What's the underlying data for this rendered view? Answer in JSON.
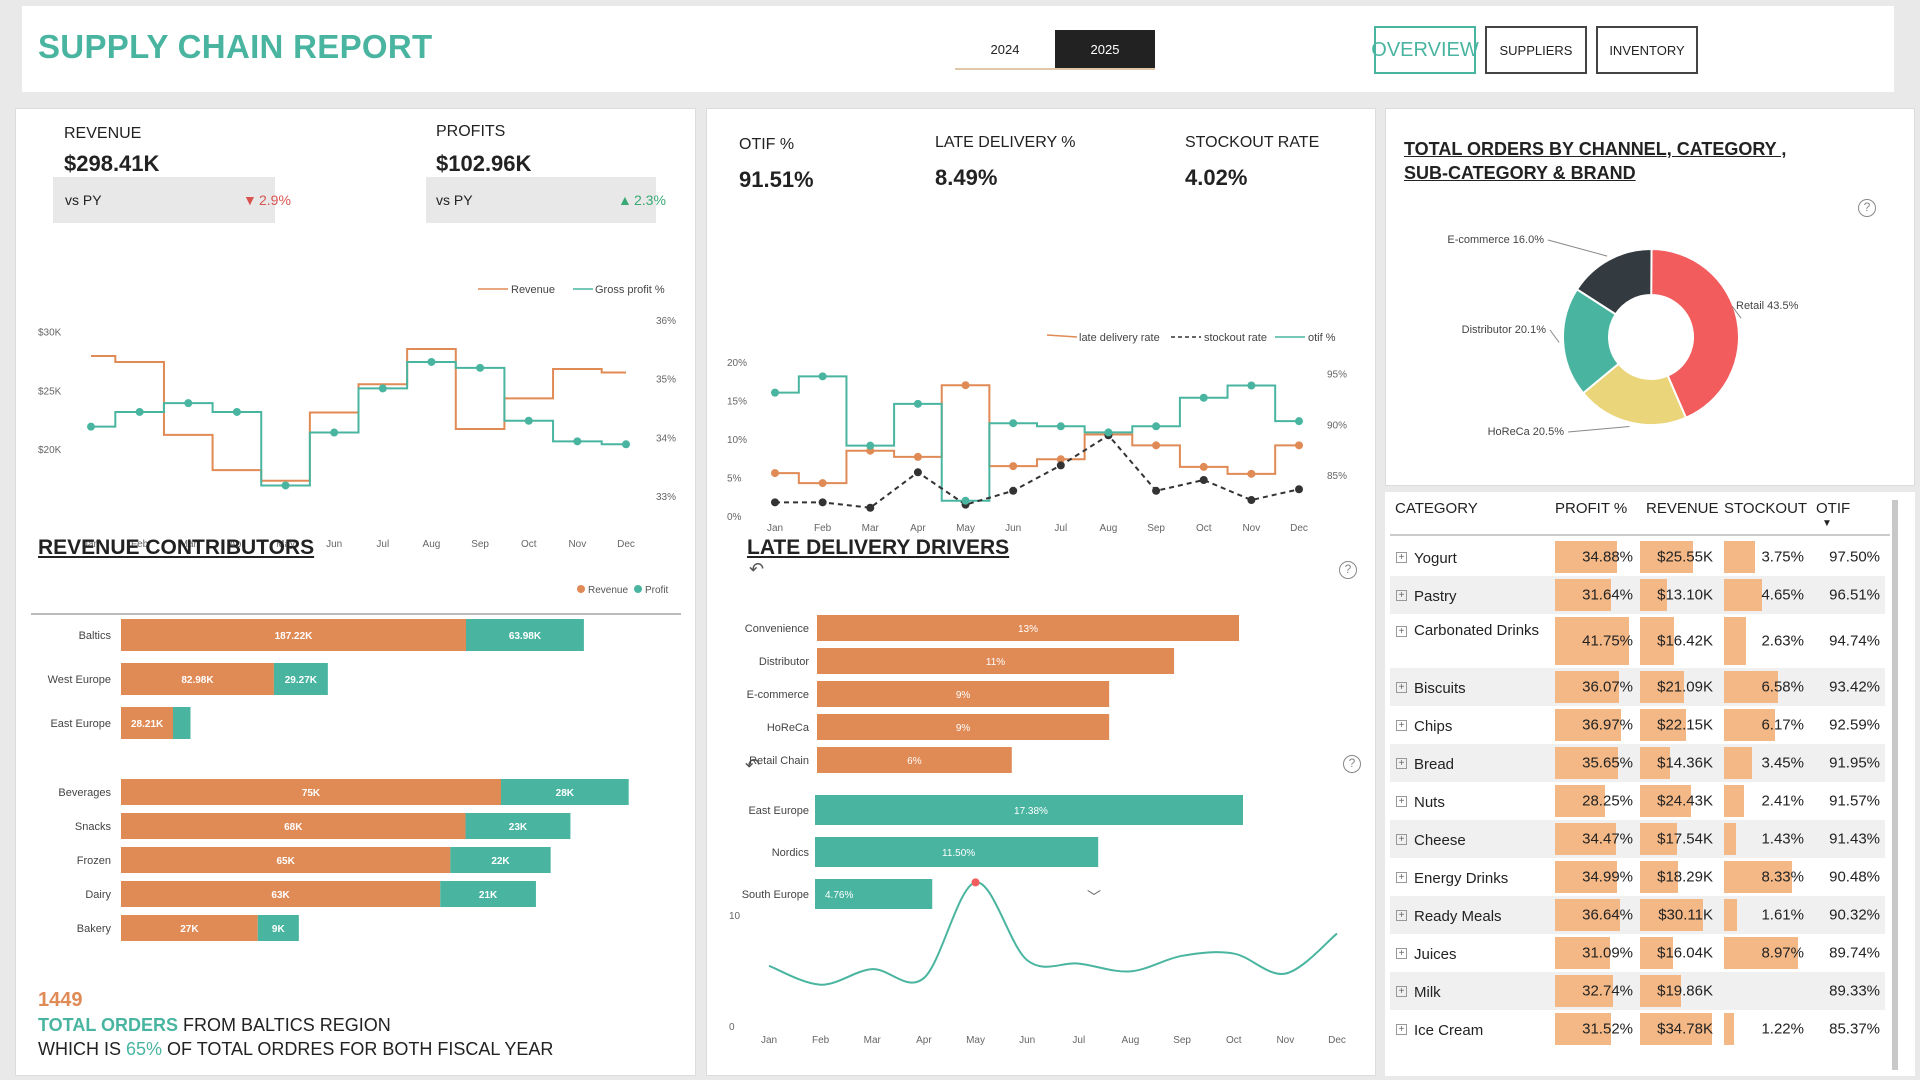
{
  "header": {
    "title": "SUPPLY CHAIN REPORT",
    "years": [
      "2024",
      "2025"
    ],
    "nav": [
      "OVERVIEW",
      "SUPPLIERS",
      "INVENTORY"
    ]
  },
  "kpis_left": {
    "revenue_label": "REVENUE",
    "revenue_value": "$298.41K",
    "revenue_vs": "vs PY",
    "revenue_change": "2.9%",
    "profits_label": "PROFITS",
    "profits_value": "$102.96K",
    "profits_vs": "vs PY",
    "profits_change": "2.3%"
  },
  "kpis_mid": {
    "otif_label": "OTIF %",
    "otif_value": "91.51%",
    "late_label": "LATE DELIVERY %",
    "late_value": "8.49%",
    "stockout_label": "STOCKOUT RATE",
    "stockout_value": "4.02%"
  },
  "colors": {
    "orange": "#e08a55",
    "teal": "#49b5a0",
    "dark": "#333a40",
    "red": "#f25c5c",
    "yellow": "#ebd57a"
  },
  "chart_data": [
    {
      "type": "line",
      "x": [
        "Jan",
        "Feb",
        "Mar",
        "Apr",
        "May",
        "Jun",
        "Jul",
        "Aug",
        "Sep",
        "Oct",
        "Nov",
        "Dec"
      ],
      "legend": [
        "Revenue",
        "Gross profit %"
      ],
      "y_ticks": [
        "$30K",
        "$25K",
        "$20K"
      ],
      "y2_ticks": [
        "36%",
        "35%",
        "34%",
        "33%"
      ],
      "series": [
        {
          "name": "Revenue",
          "values": [
            28,
            27.5,
            21.3,
            18.3,
            17.4,
            23.2,
            25.6,
            28.6,
            21.8,
            24.4,
            26.9,
            26.6
          ]
        },
        {
          "name": "Gross profit %",
          "values": [
            34.2,
            34.45,
            34.6,
            34.45,
            33.2,
            34.1,
            34.85,
            35.3,
            35.2,
            34.3,
            33.95,
            33.9
          ]
        }
      ],
      "ylim": [
        15,
        32
      ],
      "y2lim": [
        32.8,
        36.2
      ]
    },
    {
      "type": "line",
      "x": [
        "Jan",
        "Feb",
        "Mar",
        "Apr",
        "May",
        "Jun",
        "Jul",
        "Aug",
        "Sep",
        "Oct",
        "Nov",
        "Dec"
      ],
      "legend": [
        "late delivery rate",
        "stockout rate",
        "otif %"
      ],
      "y_ticks": [
        "20%",
        "15%",
        "10%",
        "5%",
        "0%"
      ],
      "y2_ticks": [
        "95%",
        "90%",
        "85%"
      ],
      "series": [
        {
          "name": "late delivery rate",
          "values": [
            5.7,
            4.4,
            8.6,
            7.8,
            17.1,
            6.6,
            7.5,
            10.7,
            9.3,
            6.5,
            5.6,
            9.3
          ]
        },
        {
          "name": "stockout rate",
          "values": [
            1.9,
            1.9,
            1.2,
            5.8,
            1.6,
            3.4,
            6.7,
            10.6,
            3.4,
            4.8,
            2.2,
            3.6
          ]
        },
        {
          "name": "otif %",
          "values": [
            93.2,
            94.8,
            88.0,
            92.1,
            82.6,
            90.2,
            89.9,
            89.3,
            89.9,
            92.7,
            93.9,
            90.4
          ]
        }
      ],
      "ylim": [
        0,
        20.5
      ],
      "y2lim": [
        81,
        96.5
      ]
    },
    {
      "type": "pie",
      "title": "TOTAL ORDERS BY CHANNEL, CATEGORY , SUB-CATEGORY & BRAND",
      "slices": [
        {
          "label": "Retail",
          "pct": 43.5,
          "text": "Retail 43.5%"
        },
        {
          "label": "HoReCa",
          "pct": 20.5,
          "text": "HoReCa 20.5%"
        },
        {
          "label": "Distributor",
          "pct": 20.1,
          "text": "Distributor 20.1%"
        },
        {
          "label": "E-commerce",
          "pct": 16.0,
          "text": "E-commerce 16.0%"
        }
      ]
    },
    {
      "type": "bar",
      "title": "REVENUE CONTRIBUTORS",
      "legend": [
        "Revenue",
        "Profit"
      ],
      "groups": [
        {
          "categories": [
            "Baltics",
            "West Europe",
            "East Europe"
          ],
          "revenue": [
            187.22,
            82.98,
            28.21
          ],
          "profit": [
            63.98,
            29.27,
            9.5
          ],
          "rev_labels": [
            "187.22K",
            "82.98K",
            "28.21K"
          ],
          "prof_labels": [
            "63.98K",
            "29.27K",
            ""
          ]
        },
        {
          "categories": [
            "Beverages",
            "Snacks",
            "Frozen",
            "Dairy",
            "Bakery"
          ],
          "revenue": [
            75,
            68,
            65,
            63,
            27
          ],
          "profit": [
            28,
            23,
            22,
            21,
            9
          ],
          "rev_labels": [
            "75K",
            "68K",
            "65K",
            "63K",
            "27K"
          ],
          "prof_labels": [
            "28K",
            "23K",
            "22K",
            "21K",
            "9K"
          ]
        }
      ]
    },
    {
      "type": "bar",
      "title": "LATE DELIVERY DRIVERS",
      "groups": [
        {
          "categories": [
            "Convenience",
            "Distributor",
            "E-commerce",
            "HoReCa",
            "Retail Chain"
          ],
          "values": [
            13,
            11,
            9,
            9,
            6
          ],
          "labels": [
            "13%",
            "11%",
            "9%",
            "9%",
            "6%"
          ]
        },
        {
          "categories": [
            "East Europe",
            "Nordics",
            "South Europe"
          ],
          "values": [
            17.38,
            11.5,
            4.76
          ],
          "labels": [
            "17.38%",
            "11.50%",
            "4.76%"
          ]
        }
      ]
    },
    {
      "type": "line",
      "x": [
        "Jan",
        "Feb",
        "Mar",
        "Apr",
        "May",
        "Jun",
        "Jul",
        "Aug",
        "Sep",
        "Oct",
        "Nov",
        "Dec"
      ],
      "y_ticks": [
        "10",
        "0"
      ],
      "values": [
        5.5,
        3.8,
        5.2,
        4.4,
        13.0,
        6.0,
        5.7,
        5.0,
        6.4,
        6.6,
        4.8,
        8.4
      ],
      "ylim": [
        0,
        16
      ]
    }
  ],
  "table": {
    "headers": [
      "CATEGORY",
      "PROFIT %",
      "REVENUE",
      "STOCKOUT",
      "OTIF"
    ],
    "rows": [
      {
        "cat": "Yogurt",
        "profit": "34.88%",
        "p": 34.88,
        "revenue": "$25.55K",
        "r": 25.55,
        "stockout": "3.75%",
        "s": 3.75,
        "otif": "97.50%"
      },
      {
        "cat": "Pastry",
        "profit": "31.64%",
        "p": 31.64,
        "revenue": "$13.10K",
        "r": 13.1,
        "stockout": "4.65%",
        "s": 4.65,
        "otif": "96.51%"
      },
      {
        "cat": "Carbonated Drinks",
        "profit": "41.75%",
        "p": 41.75,
        "revenue": "$16.42K",
        "r": 16.42,
        "stockout": "2.63%",
        "s": 2.63,
        "otif": "94.74%"
      },
      {
        "cat": "Biscuits",
        "profit": "36.07%",
        "p": 36.07,
        "revenue": "$21.09K",
        "r": 21.09,
        "stockout": "6.58%",
        "s": 6.58,
        "otif": "93.42%"
      },
      {
        "cat": "Chips",
        "profit": "36.97%",
        "p": 36.97,
        "revenue": "$22.15K",
        "r": 22.15,
        "stockout": "6.17%",
        "s": 6.17,
        "otif": "92.59%"
      },
      {
        "cat": "Bread",
        "profit": "35.65%",
        "p": 35.65,
        "revenue": "$14.36K",
        "r": 14.36,
        "stockout": "3.45%",
        "s": 3.45,
        "otif": "91.95%"
      },
      {
        "cat": "Nuts",
        "profit": "28.25%",
        "p": 28.25,
        "revenue": "$24.43K",
        "r": 24.43,
        "stockout": "2.41%",
        "s": 2.41,
        "otif": "91.57%"
      },
      {
        "cat": "Cheese",
        "profit": "34.47%",
        "p": 34.47,
        "revenue": "$17.54K",
        "r": 17.54,
        "stockout": "1.43%",
        "s": 1.43,
        "otif": "91.43%"
      },
      {
        "cat": "Energy Drinks",
        "profit": "34.99%",
        "p": 34.99,
        "revenue": "$18.29K",
        "r": 18.29,
        "stockout": "8.33%",
        "s": 8.33,
        "otif": "90.48%"
      },
      {
        "cat": "Ready Meals",
        "profit": "36.64%",
        "p": 36.64,
        "revenue": "$30.11K",
        "r": 30.11,
        "stockout": "1.61%",
        "s": 1.61,
        "otif": "90.32%"
      },
      {
        "cat": "Juices",
        "profit": "31.09%",
        "p": 31.09,
        "revenue": "$16.04K",
        "r": 16.04,
        "stockout": "8.97%",
        "s": 8.97,
        "otif": "89.74%"
      },
      {
        "cat": "Milk",
        "profit": "32.74%",
        "p": 32.74,
        "revenue": "$19.86K",
        "r": 19.86,
        "stockout": "",
        "s": 0,
        "otif": "89.33%"
      },
      {
        "cat": "Ice Cream",
        "profit": "31.52%",
        "p": 31.52,
        "revenue": "$34.78K",
        "r": 34.78,
        "stockout": "1.22%",
        "s": 1.22,
        "otif": "85.37%"
      }
    ]
  },
  "footer": {
    "count": "1449",
    "line1_a": "TOTAL ORDERS",
    "line1_b": " FROM BALTICS REGION",
    "line2_a": "WHICH IS ",
    "line2_b": "65%",
    "line2_c": " OF TOTAL ORDRES FOR BOTH FISCAL YEAR"
  }
}
